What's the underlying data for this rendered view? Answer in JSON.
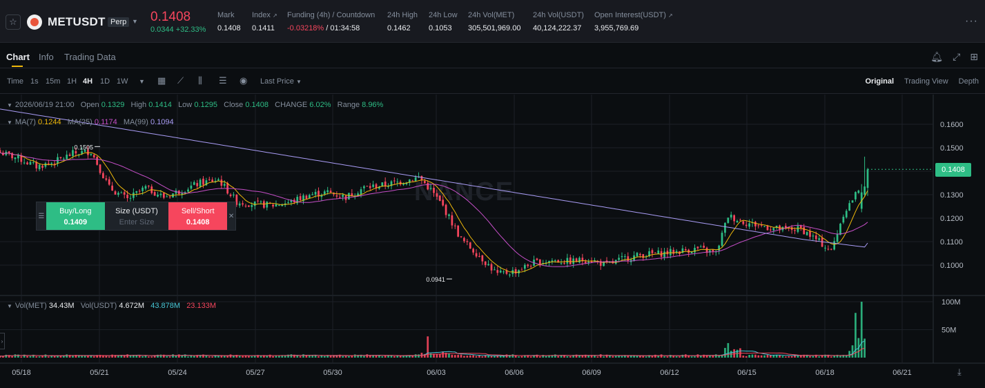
{
  "ticker": {
    "symbol": "METUSDT",
    "contract_type": "Perp",
    "last_price": "0.1408",
    "change": "0.0344 +32.33%",
    "stats": [
      {
        "label": "Mark",
        "value": "0.1408"
      },
      {
        "label": "Index",
        "value": "0.1411"
      },
      {
        "label": "Funding (4h) / Countdown",
        "value_neg": "-0.03218%",
        "value": " / 01:34:58"
      },
      {
        "label": "24h High",
        "value": "0.1462"
      },
      {
        "label": "24h Low",
        "value": "0.1053"
      },
      {
        "label": "24h Vol(MET)",
        "value": "305,501,969.00"
      },
      {
        "label": "24h Vol(USDT)",
        "value": "40,124,222.37"
      },
      {
        "label": "Open Interest(USDT)",
        "value": "3,955,769.69"
      }
    ]
  },
  "tabs": [
    "Chart",
    "Info",
    "Trading Data"
  ],
  "toolbar": {
    "time_label": "Time",
    "intervals": [
      "1s",
      "15m",
      "1H",
      "4H",
      "1D",
      "1W"
    ],
    "active_interval": "4H",
    "price_type": "Last Price",
    "views": [
      "Original",
      "Trading View",
      "Depth"
    ],
    "active_view": "Original"
  },
  "legend": {
    "datetime": "2026/06/19 21:00",
    "open_label": "Open",
    "open": "0.1329",
    "high_label": "High",
    "high": "0.1414",
    "low_label": "Low",
    "low": "0.1295",
    "close_label": "Close",
    "close": "0.1408",
    "change_label": "CHANGE",
    "change": "6.02%",
    "range_label": "Range",
    "range": "8.96%",
    "ma7_label": "MA(7)",
    "ma7": "0.1244",
    "ma25_label": "MA(25)",
    "ma25": "0.1174",
    "ma99_label": "MA(99)",
    "ma99": "0.1094",
    "vol_met_label": "Vol(MET)",
    "vol_met": "34.43M",
    "vol_usdt_label": "Vol(USDT)",
    "vol_usdt": "4.672M",
    "vol_ma1": "43.878M",
    "vol_ma2": "23.133M"
  },
  "order": {
    "buy_label": "Buy/Long",
    "buy_price": "0.1409",
    "size_label": "Size (USDT)",
    "size_placeholder": "Enter Size",
    "sell_label": "Sell/Short",
    "sell_price": "0.1408"
  },
  "current_price_tag": "0.1408",
  "colors": {
    "up": "#2ebd85",
    "down": "#f6465d",
    "ma7": "#f0b90b",
    "ma25": "#c74fc9",
    "ma99": "#a99cf5",
    "accent": "#f0b90b"
  },
  "icons": [
    "star-icon",
    "coin-icon",
    "bell-icon",
    "expand-icon",
    "grid-icon",
    "calendar-icon",
    "indicator-icon",
    "candle-type-icon",
    "settings-icon",
    "target-icon",
    "more-icon",
    "scroll-end-icon"
  ],
  "chart_data": {
    "type": "candlestick",
    "interval": "4H",
    "price_ticks": [
      "0.1600",
      "0.1500",
      "0.1400",
      "0.1300",
      "0.1200",
      "0.1100",
      "0.1000"
    ],
    "volume_ticks": [
      "100M",
      "50M"
    ],
    "date_ticks": [
      "05/18",
      "05/21",
      "05/24",
      "05/27",
      "05/30",
      "06/03",
      "06/06",
      "06/09",
      "06/12",
      "06/15",
      "06/18",
      "06/21"
    ],
    "annotations": [
      {
        "label": "0.1505",
        "value": 0.1505,
        "date": "05/22"
      },
      {
        "label": "0.0941",
        "value": 0.0941,
        "date": "06/06"
      }
    ],
    "close_path": [
      [
        0.148,
        0
      ],
      [
        0.1455,
        6
      ],
      [
        0.142,
        12
      ],
      [
        0.144,
        18
      ],
      [
        0.1475,
        24
      ],
      [
        0.1485,
        30
      ],
      [
        0.133,
        36
      ],
      [
        0.128,
        42
      ],
      [
        0.133,
        48
      ],
      [
        0.129,
        54
      ],
      [
        0.132,
        60
      ],
      [
        0.135,
        66
      ],
      [
        0.1365,
        72
      ],
      [
        0.127,
        78
      ],
      [
        0.126,
        84
      ],
      [
        0.1255,
        90
      ],
      [
        0.127,
        96
      ],
      [
        0.13,
        102
      ],
      [
        0.131,
        108
      ],
      [
        0.129,
        114
      ],
      [
        0.133,
        120
      ],
      [
        0.134,
        126
      ],
      [
        0.1355,
        132
      ],
      [
        0.1375,
        138
      ],
      [
        0.132,
        142
      ],
      [
        0.125,
        146
      ],
      [
        0.111,
        152
      ],
      [
        0.104,
        158
      ],
      [
        0.096,
        164
      ],
      [
        0.0975,
        170
      ],
      [
        0.101,
        176
      ],
      [
        0.102,
        182
      ],
      [
        0.1015,
        188
      ],
      [
        0.1025,
        194
      ],
      [
        0.1,
        200
      ],
      [
        0.103,
        206
      ],
      [
        0.1045,
        212
      ],
      [
        0.105,
        218
      ],
      [
        0.106,
        224
      ],
      [
        0.107,
        230
      ],
      [
        0.105,
        236
      ],
      [
        0.121,
        240
      ],
      [
        0.118,
        246
      ],
      [
        0.1165,
        252
      ],
      [
        0.115,
        258
      ],
      [
        0.1155,
        264
      ],
      [
        0.11,
        270
      ],
      [
        0.106,
        274
      ],
      [
        0.122,
        278
      ],
      [
        0.13,
        282
      ],
      [
        0.1408,
        286
      ]
    ],
    "ma7_last": 0.1244,
    "ma25_last": 0.1174,
    "ma99_last": 0.1094
  }
}
